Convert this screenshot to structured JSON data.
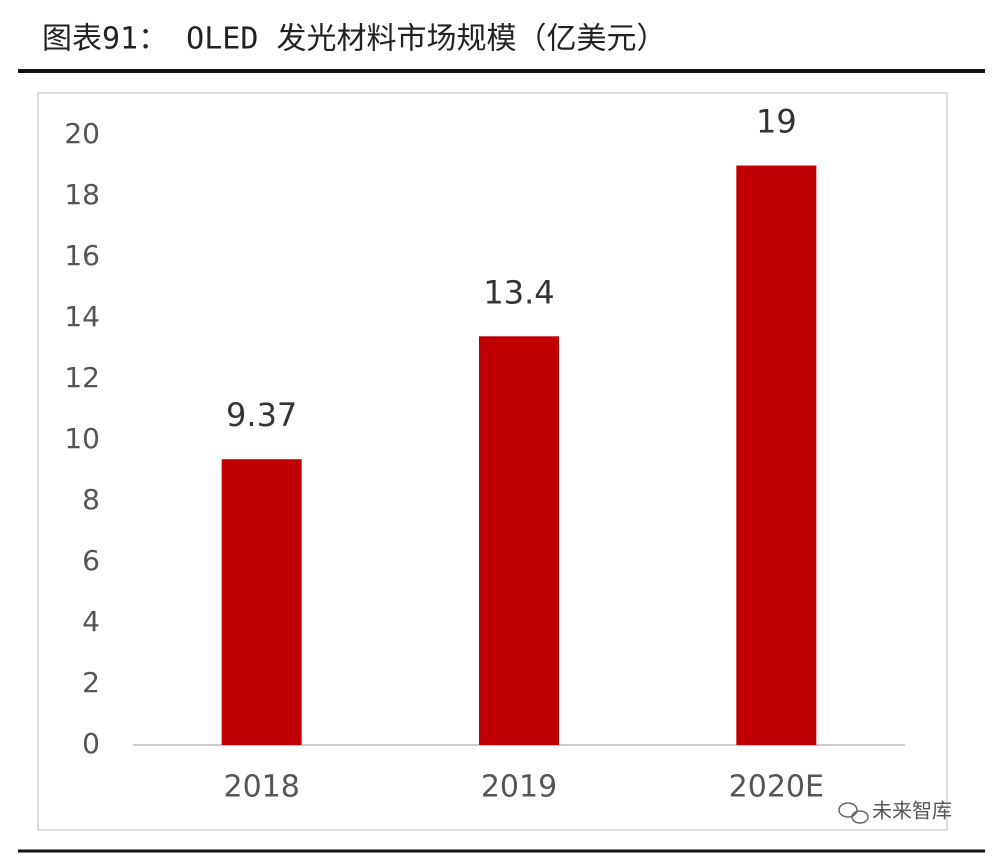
{
  "chart_data": {
    "type": "bar",
    "title": "图表91： OLED 发光材料市场规模（亿美元）",
    "categories": [
      "2018",
      "2019",
      "2020E"
    ],
    "values": [
      9.37,
      13.4,
      19
    ],
    "color": "#c00000",
    "ylim": [
      0,
      20
    ],
    "yticks": [
      0,
      2,
      4,
      6,
      8,
      10,
      12,
      14,
      16,
      18,
      20
    ],
    "grid": false,
    "watermark": "未来智库"
  }
}
